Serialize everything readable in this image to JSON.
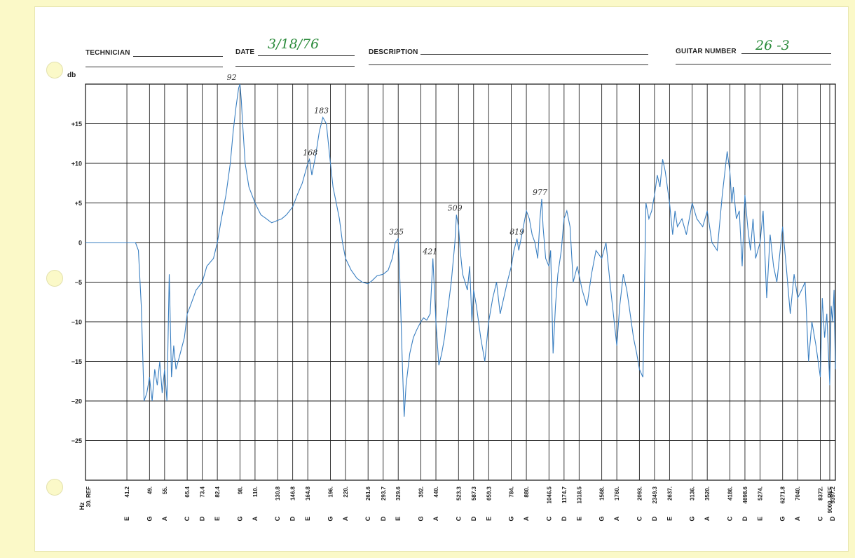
{
  "form": {
    "technician_label": "TECHNICIAN",
    "date_label": "DATE",
    "date_value": "3/18/76",
    "description_label": "DESCRIPTION",
    "guitar_number_label": "GUITAR NUMBER",
    "guitar_number_value": "26 -3"
  },
  "chart_data": {
    "type": "line",
    "title": "",
    "ylabel": "db",
    "xlabel": "Hz",
    "ylim": [
      -30,
      20
    ],
    "yticks": [
      {
        "value": 15,
        "label": "+15"
      },
      {
        "value": 10,
        "label": "+10"
      },
      {
        "value": 5,
        "label": "+5"
      },
      {
        "value": 0,
        "label": "0"
      },
      {
        "value": -5,
        "label": "−5"
      },
      {
        "value": -10,
        "label": "−10"
      },
      {
        "value": -15,
        "label": "−15"
      },
      {
        "value": -20,
        "label": "−20"
      },
      {
        "value": -25,
        "label": "−25"
      }
    ],
    "xticks": [
      {
        "freq": "30. REF",
        "note": ""
      },
      {
        "freq": "41.2",
        "note": "E"
      },
      {
        "freq": "49.",
        "note": "G"
      },
      {
        "freq": "55.",
        "note": "A"
      },
      {
        "freq": "65.4",
        "note": "C"
      },
      {
        "freq": "73.4",
        "note": "D"
      },
      {
        "freq": "82.4",
        "note": "E"
      },
      {
        "freq": "98.",
        "note": "G"
      },
      {
        "freq": "110.",
        "note": "A"
      },
      {
        "freq": "130.8",
        "note": "C"
      },
      {
        "freq": "146.8",
        "note": "D"
      },
      {
        "freq": "164.8",
        "note": "E"
      },
      {
        "freq": "196.",
        "note": "G"
      },
      {
        "freq": "220.",
        "note": "A"
      },
      {
        "freq": "261.6",
        "note": "C"
      },
      {
        "freq": "293.7",
        "note": "D"
      },
      {
        "freq": "329.6",
        "note": "E"
      },
      {
        "freq": "392.",
        "note": "G"
      },
      {
        "freq": "440.",
        "note": "A"
      },
      {
        "freq": "523.3",
        "note": "C"
      },
      {
        "freq": "587.3",
        "note": "D"
      },
      {
        "freq": "659.3",
        "note": "E"
      },
      {
        "freq": "784.",
        "note": "G"
      },
      {
        "freq": "880.",
        "note": "A"
      },
      {
        "freq": "1046.5",
        "note": "C"
      },
      {
        "freq": "1174.7",
        "note": "D"
      },
      {
        "freq": "1318.5",
        "note": "E"
      },
      {
        "freq": "1568.",
        "note": "G"
      },
      {
        "freq": "1760.",
        "note": "A"
      },
      {
        "freq": "2093.",
        "note": "C"
      },
      {
        "freq": "2349.3",
        "note": "D"
      },
      {
        "freq": "2637.",
        "note": "E"
      },
      {
        "freq": "3136.",
        "note": "G"
      },
      {
        "freq": "3520.",
        "note": "A"
      },
      {
        "freq": "4186.",
        "note": "C"
      },
      {
        "freq": "4698.6",
        "note": "D"
      },
      {
        "freq": "5274.",
        "note": "E"
      },
      {
        "freq": "6271.8",
        "note": "G"
      },
      {
        "freq": "7040.",
        "note": "A"
      },
      {
        "freq": "8372.",
        "note": "C"
      },
      {
        "freq": "9000. REF",
        "note": ""
      },
      {
        "freq": "9397.2",
        "note": "D"
      }
    ],
    "grid": true,
    "line_color": "#3a7fc1",
    "series": [
      {
        "x": [
          30,
          32,
          35,
          38,
          40,
          41,
          42,
          42.6,
          43,
          44,
          45,
          46,
          47,
          48,
          49,
          50,
          51,
          52,
          53,
          54,
          55,
          56,
          57,
          58,
          59,
          60,
          62,
          64,
          65.4,
          67,
          70,
          73.4,
          76,
          80,
          82.4,
          85,
          88,
          91,
          93,
          95,
          97,
          98,
          99,
          100,
          102,
          105,
          110,
          115,
          120,
          125,
          130.8,
          135,
          140,
          146.8,
          152,
          158,
          164.8,
          167,
          170,
          175,
          180,
          185,
          190,
          196,
          200,
          205,
          210,
          215,
          220,
          230,
          240,
          250,
          261.6,
          270,
          280,
          293.7,
          305,
          315,
          322,
          329.6,
          334,
          340,
          345,
          350,
          360,
          370,
          380,
          392,
          400,
          410,
          421,
          430,
          440,
          450,
          460,
          470,
          480,
          495,
          509,
          515,
          523.3,
          530,
          540,
          550,
          560,
          570,
          580,
          587.3,
          600,
          620,
          640,
          659.3,
          680,
          700,
          720,
          740,
          760,
          784,
          800,
          819,
          830,
          840,
          860,
          880,
          900,
          920,
          940,
          960,
          977,
          990,
          1000,
          1020,
          1046.5,
          1060,
          1080,
          1100,
          1120,
          1150,
          1174.7,
          1200,
          1230,
          1260,
          1300,
          1350,
          1400,
          1450,
          1500,
          1568,
          1620,
          1680,
          1760,
          1800,
          1850,
          1900,
          1950,
          2000,
          2050,
          2093,
          2150,
          2200,
          2250,
          2300,
          2349.3,
          2400,
          2450,
          2500,
          2550,
          2637,
          2700,
          2750,
          2800,
          2900,
          3000,
          3136,
          3250,
          3400,
          3520,
          3650,
          3800,
          3950,
          4100,
          4186,
          4250,
          4300,
          4400,
          4500,
          4600,
          4698.6,
          4800,
          4900,
          5000,
          5100,
          5274,
          5400,
          5550,
          5700,
          5850,
          6000,
          6271.8,
          6450,
          6650,
          6850,
          7040,
          7250,
          7450,
          7650,
          7850,
          8100,
          8372,
          8500,
          8650,
          8800,
          9000,
          9100,
          9200,
          9300,
          9397.2
        ],
        "y": [
          0,
          0,
          0,
          0,
          0,
          0,
          0,
          0,
          0,
          0,
          -1,
          -8,
          -20,
          -19,
          -17,
          -20,
          -16,
          -18,
          -15,
          -19,
          -16,
          -20,
          -4,
          -17,
          -13,
          -16,
          -14,
          -12,
          -9,
          -8,
          -6,
          -5,
          -3,
          -2,
          0,
          3,
          6,
          10,
          14,
          17,
          19.5,
          20,
          18,
          15,
          10,
          7,
          5,
          3.5,
          3,
          2.5,
          2.8,
          3,
          3.5,
          4.5,
          6,
          7.5,
          10,
          10.5,
          8.5,
          11,
          14,
          15.8,
          15,
          10,
          7,
          5,
          3,
          0,
          -2,
          -3.5,
          -4.5,
          -5,
          -5.2,
          -4.8,
          -4.2,
          -4,
          -3.5,
          -2,
          0,
          0.5,
          -5,
          -15,
          -22,
          -18,
          -14,
          -12,
          -11,
          -10,
          -9.5,
          -9.8,
          -9,
          -2,
          -10,
          -15.5,
          -14,
          -12,
          -9,
          -5,
          0,
          3.5,
          2,
          -1,
          -4,
          -5,
          -6,
          -3,
          -10,
          -6,
          -8,
          -12,
          -15,
          -10,
          -7,
          -5,
          -9,
          -7,
          -5,
          -3,
          -1,
          0.5,
          -1,
          0,
          2,
          4,
          3,
          1,
          0,
          -2,
          3,
          5.5,
          2,
          -2,
          -3,
          -1,
          -14,
          -8,
          -4,
          -1,
          3,
          4,
          2,
          -5,
          -3,
          -6,
          -8,
          -4,
          -1,
          -2,
          0,
          -6,
          -13,
          -8,
          -4,
          -6,
          -9,
          -12,
          -14,
          -16,
          -17,
          5,
          3,
          4,
          6,
          8.5,
          7,
          10.5,
          9,
          5,
          1,
          4,
          2,
          3,
          1,
          5,
          3,
          2,
          4,
          0,
          -1,
          6,
          11.5,
          9,
          5,
          7,
          3,
          4,
          -3,
          6,
          2,
          -1,
          3,
          -2,
          0,
          4,
          -7,
          1,
          -3,
          -5,
          2,
          -3,
          -9,
          -4,
          -7,
          -6,
          -5,
          -15,
          -10,
          -13,
          -17,
          -7,
          -12,
          -9,
          -18,
          -8,
          -10,
          -6,
          -16
        ],
        "points_note": ""
      }
    ],
    "annotations": [
      {
        "x": 92,
        "y": 20,
        "text": "92"
      },
      {
        "x": 168,
        "y": 10.5,
        "text": "168"
      },
      {
        "x": 183,
        "y": 15.8,
        "text": "183"
      },
      {
        "x": 325,
        "y": 0.5,
        "text": "325"
      },
      {
        "x": 421,
        "y": -2,
        "text": "421"
      },
      {
        "x": 509,
        "y": 3.5,
        "text": "509"
      },
      {
        "x": 819,
        "y": 0.5,
        "text": "819"
      },
      {
        "x": 977,
        "y": 5.5,
        "text": "977"
      }
    ]
  }
}
